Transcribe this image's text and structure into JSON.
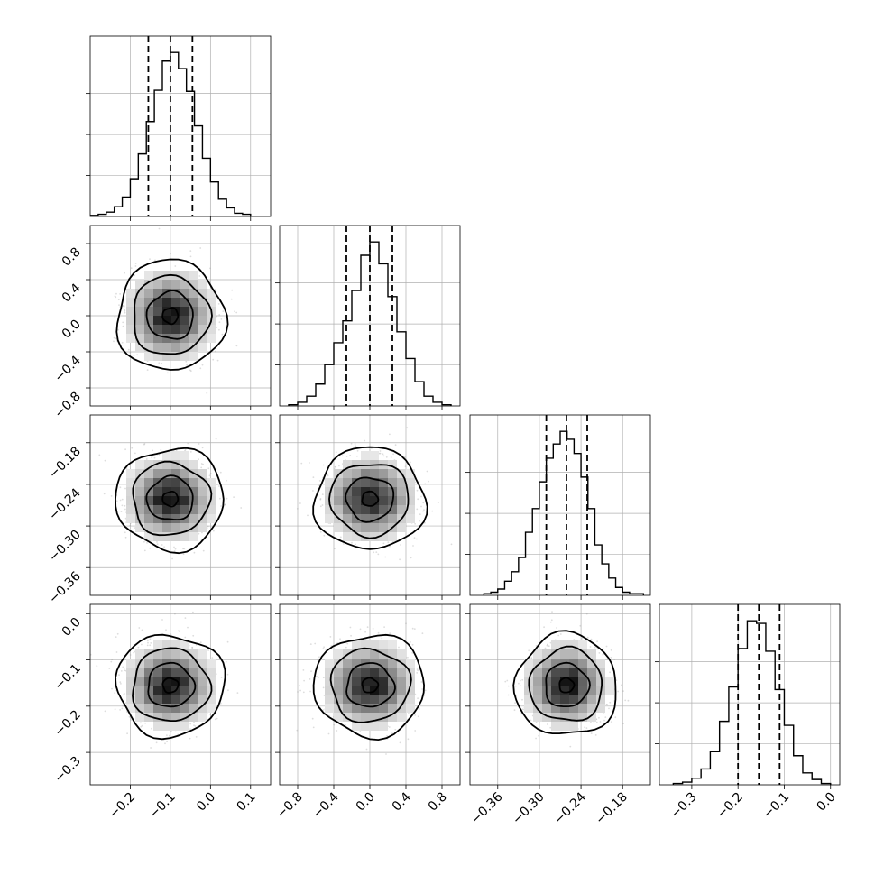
{
  "chart_data": {
    "type": "corner",
    "title": "",
    "n_parameters": 4,
    "parameters": [
      {
        "label": "",
        "range": [
          -0.3,
          0.15
        ],
        "ticks": [
          -0.2,
          -0.1,
          0.0,
          0.1
        ],
        "tick_labels": [
          "−0.2",
          "−0.1",
          "0.0",
          "0.1"
        ],
        "median": -0.1,
        "quantiles": [
          -0.155,
          -0.1,
          -0.045
        ],
        "histogram": {
          "edges": [
            -0.3,
            -0.28,
            -0.26,
            -0.24,
            -0.22,
            -0.2,
            -0.18,
            -0.16,
            -0.14,
            -0.12,
            -0.1,
            -0.08,
            -0.06,
            -0.04,
            -0.02,
            0.0,
            0.02,
            0.04,
            0.06,
            0.08,
            0.1
          ],
          "counts": [
            1,
            2,
            4,
            9,
            18,
            35,
            58,
            88,
            117,
            144,
            152,
            137,
            116,
            84,
            54,
            32,
            16,
            8,
            3,
            2
          ]
        }
      },
      {
        "label": "",
        "range": [
          -1.0,
          1.0
        ],
        "ticks": [
          -0.8,
          -0.4,
          0.0,
          0.4,
          0.8
        ],
        "tick_labels": [
          "−0.8",
          "−0.4",
          "0.0",
          "0.4",
          "0.8"
        ],
        "median": 0.0,
        "quantiles": [
          -0.26,
          0.0,
          0.25
        ],
        "histogram": {
          "edges": [
            -0.9,
            -0.8,
            -0.7,
            -0.6,
            -0.5,
            -0.4,
            -0.3,
            -0.2,
            -0.1,
            0.0,
            0.1,
            0.2,
            0.3,
            0.4,
            0.5,
            0.6,
            0.7,
            0.8,
            0.9
          ],
          "counts": [
            1,
            3,
            8,
            18,
            34,
            52,
            70,
            95,
            124,
            135,
            117,
            90,
            61,
            39,
            20,
            8,
            3,
            1
          ]
        }
      },
      {
        "label": "",
        "range": [
          -0.4,
          -0.14
        ],
        "ticks": [
          -0.36,
          -0.3,
          -0.24,
          -0.18
        ],
        "tick_labels": [
          "−0.36",
          "−0.30",
          "−0.24",
          "−0.18"
        ],
        "median": -0.261,
        "quantiles": [
          -0.29,
          -0.261,
          -0.231
        ],
        "histogram": {
          "edges": [
            -0.38,
            -0.37,
            -0.36,
            -0.35,
            -0.34,
            -0.33,
            -0.32,
            -0.31,
            -0.3,
            -0.29,
            -0.28,
            -0.27,
            -0.26,
            -0.25,
            -0.24,
            -0.23,
            -0.22,
            -0.21,
            -0.2,
            -0.19,
            -0.18,
            -0.17,
            -0.16,
            -0.15
          ],
          "counts": [
            1,
            2,
            4,
            9,
            15,
            24,
            40,
            55,
            72,
            87,
            96,
            104,
            99,
            90,
            75,
            55,
            32,
            20,
            11,
            5,
            2,
            1,
            1
          ]
        }
      },
      {
        "label": "",
        "range": [
          -0.37,
          0.02
        ],
        "ticks": [
          -0.3,
          -0.2,
          -0.1,
          0.0
        ],
        "tick_labels": [
          "−0.3",
          "−0.2",
          "−0.1",
          "0.0"
        ],
        "median": -0.155,
        "quantiles": [
          -0.2,
          -0.155,
          -0.11
        ],
        "histogram": {
          "edges": [
            -0.34,
            -0.32,
            -0.3,
            -0.28,
            -0.26,
            -0.24,
            -0.22,
            -0.2,
            -0.18,
            -0.16,
            -0.14,
            -0.12,
            -0.1,
            -0.08,
            -0.06,
            -0.04,
            -0.02,
            0.0
          ],
          "counts": [
            1,
            2,
            5,
            12,
            25,
            48,
            74,
            103,
            124,
            122,
            101,
            72,
            45,
            22,
            9,
            4,
            1
          ]
        }
      }
    ],
    "pairs": [
      {
        "x": 0,
        "y": 1,
        "center": [
          -0.1,
          0.0
        ],
        "spread": [
          0.055,
          0.25
        ],
        "scatter": "grey points",
        "contours": 4
      },
      {
        "x": 0,
        "y": 2,
        "center": [
          -0.1,
          -0.261
        ],
        "spread": [
          0.055,
          0.03
        ],
        "scatter": "grey points",
        "contours": 4
      },
      {
        "x": 1,
        "y": 2,
        "center": [
          0.0,
          -0.261
        ],
        "spread": [
          0.25,
          0.03
        ],
        "scatter": "grey points",
        "contours": 4
      },
      {
        "x": 0,
        "y": 3,
        "center": [
          -0.1,
          -0.155
        ],
        "spread": [
          0.055,
          0.045
        ],
        "scatter": "grey points",
        "contours": 4
      },
      {
        "x": 1,
        "y": 3,
        "center": [
          0.0,
          -0.155
        ],
        "spread": [
          0.25,
          0.045
        ],
        "scatter": "grey points",
        "contours": 4
      },
      {
        "x": 2,
        "y": 3,
        "center": [
          -0.261,
          -0.155
        ],
        "spread": [
          0.03,
          0.045
        ],
        "scatter": "grey points",
        "contours": 4
      }
    ],
    "grid": true,
    "colors": {
      "line": "#000000",
      "scatter": "#bdbdbd",
      "density": "#000000",
      "grid": "#b0b0b0"
    }
  }
}
